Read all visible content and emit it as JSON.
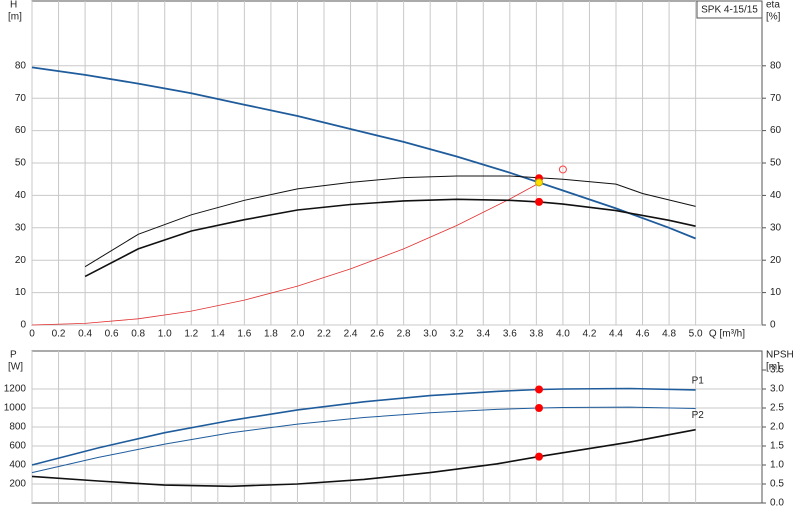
{
  "chart_data": [
    {
      "type": "line",
      "title": "SPK 4-15/15",
      "ylabel": "H",
      "yunit": "[m]",
      "y2label": "eta",
      "y2unit": "[%]",
      "xlabel": "Q [m³/h]",
      "xlim": [
        0,
        5.5
      ],
      "xticks": [
        0,
        0.2,
        0.4,
        0.6,
        0.8,
        {
          "value": 1,
          "label": "1.0"
        },
        1.2,
        1.4,
        1.6,
        1.8,
        {
          "value": 2,
          "label": "2.0"
        },
        2.2,
        2.4,
        2.6,
        2.8,
        {
          "value": 3,
          "label": "3.0"
        },
        3.2,
        3.4,
        3.6,
        3.8,
        {
          "value": 4,
          "label": "4.0"
        },
        4.2,
        4.4,
        4.6,
        4.8,
        {
          "value": 5,
          "label": "5.0"
        }
      ],
      "ylim": [
        0,
        100
      ],
      "yticks": [
        0,
        10,
        20,
        30,
        40,
        50,
        60,
        70,
        80
      ],
      "y2lim": [
        0,
        100
      ],
      "y2ticks": [
        0,
        10,
        20,
        30,
        40,
        50,
        60,
        70,
        80
      ],
      "grid": true,
      "series": [
        {
          "color": "#1f5c9c",
          "width": 1.8,
          "x": [
            0,
            0.4,
            0.8,
            1.2,
            1.6,
            2.0,
            2.4,
            2.8,
            3.2,
            3.6,
            4.0,
            4.4,
            4.8,
            5.0
          ],
          "values": [
            79.5,
            77.2,
            74.5,
            71.5,
            68,
            64.5,
            60.5,
            56.5,
            52,
            47,
            41.5,
            36,
            30,
            26.7
          ]
        },
        {
          "color": "#e03030",
          "width": 0.8,
          "x": [
            0,
            0.4,
            0.8,
            1.2,
            1.6,
            2.0,
            2.4,
            2.8,
            3.2,
            3.6,
            3.82
          ],
          "values": [
            0,
            0.5,
            1.9,
            4.3,
            7.7,
            12,
            17.3,
            23.5,
            30.7,
            38.9,
            43.8
          ]
        },
        {
          "color": "#111111",
          "width": 1,
          "axis": "y2",
          "x": [
            0.4,
            0.8,
            1.2,
            1.6,
            2.0,
            2.4,
            2.8,
            3.2,
            3.6,
            4.0,
            4.4,
            4.6,
            5.0
          ],
          "values": [
            18,
            28,
            34,
            38.5,
            42,
            44,
            45.5,
            46,
            46,
            45,
            43.5,
            40.6,
            36.6
          ]
        },
        {
          "color": "#111111",
          "width": 1.6,
          "axis": "y2",
          "x": [
            0.4,
            0.8,
            1.2,
            1.6,
            2.0,
            2.4,
            2.8,
            3.2,
            3.6,
            3.82,
            4.0,
            4.4,
            4.8,
            5.0
          ],
          "values": [
            15,
            23.5,
            29,
            32.5,
            35.5,
            37.2,
            38.3,
            38.8,
            38.5,
            38,
            37.3,
            35.3,
            32.3,
            30.5
          ]
        },
        {
          "color": "#ff0000",
          "marker": "dot",
          "axis": "y2",
          "x": [
            3.82,
            3.82
          ],
          "values": [
            45.3,
            38
          ]
        },
        {
          "color": "#ffe000",
          "marker": "dot",
          "x": [
            3.82
          ],
          "values": [
            44
          ]
        },
        {
          "color": "#ff4040",
          "marker": "ring",
          "x": [
            4.0
          ],
          "values": [
            48
          ]
        }
      ]
    },
    {
      "type": "line",
      "ylabel": "P",
      "yunit": "[W]",
      "y2label": "NPSH",
      "y2unit": "[m]",
      "xlim": [
        0,
        5.5
      ],
      "xticks": [
        0,
        0.2,
        0.4,
        0.6,
        0.8,
        1,
        1.2,
        1.4,
        1.6,
        1.8,
        2,
        2.2,
        2.4,
        2.6,
        2.8,
        3,
        3.2,
        3.4,
        3.6,
        3.8,
        4,
        4.2,
        4.4,
        4.6,
        4.8,
        5
      ],
      "ylim": [
        0,
        1600
      ],
      "yticks": [
        200,
        400,
        600,
        800,
        1000,
        1200
      ],
      "y2lim": [
        0,
        4
      ],
      "y2ticks": [
        {
          "value": 0,
          "label": "0.0"
        },
        0.5,
        {
          "value": 1,
          "label": "1.0"
        },
        1.5,
        {
          "value": 2,
          "label": "2.0"
        },
        2.5,
        {
          "value": 3,
          "label": "3.0"
        },
        3.5
      ],
      "grid": true,
      "series": [
        {
          "name": "P1",
          "color": "#1f5c9c",
          "width": 1.6,
          "x": [
            0,
            0.5,
            1.0,
            1.5,
            2.0,
            2.5,
            3.0,
            3.5,
            3.82,
            4.0,
            4.5,
            5.0
          ],
          "values": [
            400,
            580,
            740,
            870,
            980,
            1065,
            1130,
            1175,
            1195,
            1200,
            1205,
            1190
          ]
        },
        {
          "name": "P2",
          "color": "#1f5c9c",
          "width": 1,
          "x": [
            0,
            0.5,
            1.0,
            1.5,
            2.0,
            2.5,
            3.0,
            3.5,
            3.82,
            4.0,
            4.5,
            5.0
          ],
          "values": [
            320,
            480,
            620,
            740,
            830,
            900,
            950,
            985,
            1000,
            1005,
            1010,
            995
          ]
        },
        {
          "color": "#111111",
          "width": 1.6,
          "axis": "y2",
          "x": [
            0,
            0.5,
            1.0,
            1.5,
            2.0,
            2.5,
            3.0,
            3.5,
            3.82,
            4.5,
            5.0
          ],
          "values": [
            0.7,
            0.58,
            0.47,
            0.44,
            0.5,
            0.62,
            0.8,
            1.03,
            1.22,
            1.6,
            1.93
          ]
        },
        {
          "color": "#ff0000",
          "marker": "dot",
          "x": [
            3.82,
            3.82
          ],
          "values": [
            1195,
            1000
          ]
        },
        {
          "color": "#ff0000",
          "marker": "dot",
          "axis": "y2",
          "x": [
            3.82
          ],
          "values": [
            1.22
          ]
        }
      ]
    }
  ]
}
